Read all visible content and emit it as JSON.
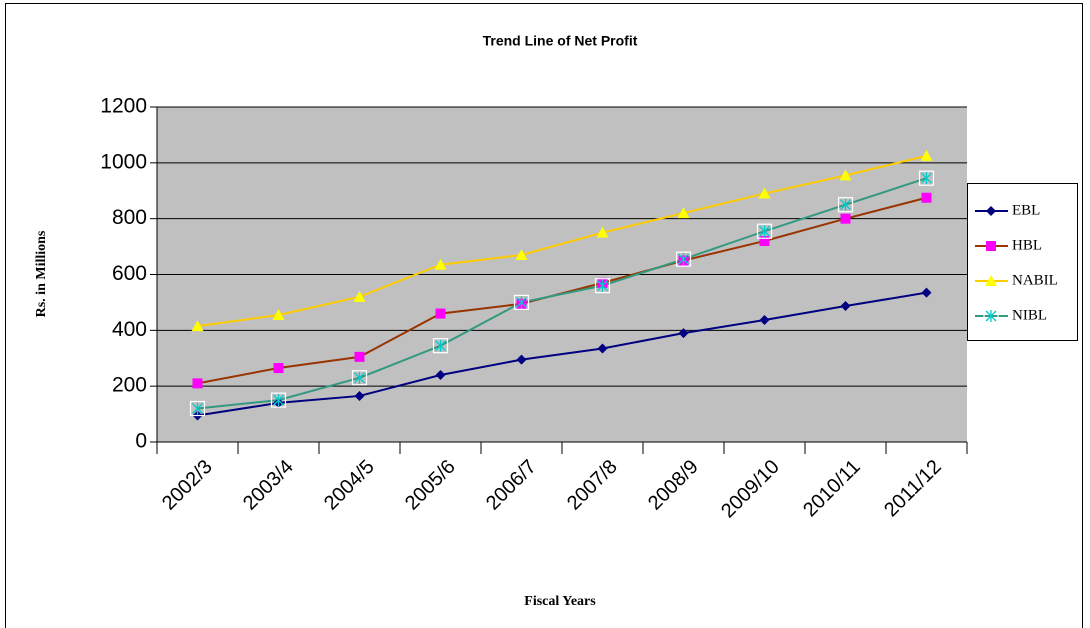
{
  "chart_data": {
    "type": "line",
    "title": "Trend Line of Net Profit",
    "x_label": "Fiscal Years",
    "y_label": "Rs. in Millions",
    "categories": [
      "2002/3",
      "2003/4",
      "2004/5",
      "2005/6",
      "2006/7",
      "2007/8",
      "2008/9",
      "2009/10",
      "2010/11",
      "2011/12"
    ],
    "series": [
      {
        "name": "EBL",
        "color": "#000080",
        "marker_color": "#000080",
        "marker": "diamond",
        "values": [
          95,
          140,
          165,
          240,
          295,
          335,
          390,
          437,
          487,
          535
        ]
      },
      {
        "name": "HBL",
        "color": "#993300",
        "marker_color": "#ff00ff",
        "marker": "square",
        "values": [
          210,
          265,
          305,
          460,
          495,
          570,
          650,
          720,
          800,
          875
        ]
      },
      {
        "name": "NABIL",
        "color": "#ffcc00",
        "marker_color": "#ffff00",
        "marker": "triangle",
        "values": [
          415,
          455,
          520,
          635,
          670,
          750,
          820,
          890,
          955,
          1025
        ]
      },
      {
        "name": "NIBL",
        "color": "#339980",
        "marker_color": "#00cccc",
        "marker": "cross",
        "values": [
          120,
          150,
          230,
          345,
          500,
          560,
          655,
          755,
          850,
          945
        ]
      }
    ],
    "ylim": [
      0,
      1200
    ],
    "yticks": [
      0,
      200,
      400,
      600,
      800,
      1000,
      1200
    ],
    "grid": true,
    "plot_background": "#c0c0c0",
    "legend": "right"
  }
}
